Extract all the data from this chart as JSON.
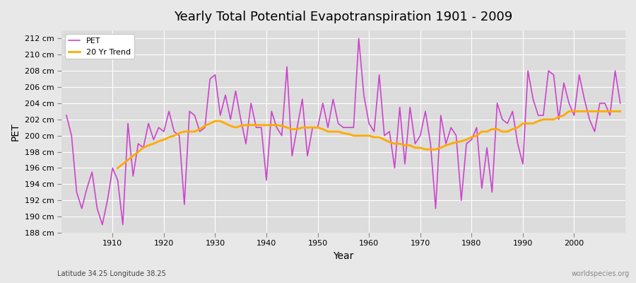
{
  "title": "Yearly Total Potential Evapotranspiration 1901 - 2009",
  "xlabel": "Year",
  "ylabel": "PET",
  "subtitle": "Latitude 34.25 Longitude 38.25",
  "watermark": "worldspecies.org",
  "pet_color": "#cc44cc",
  "trend_color": "#ffaa00",
  "bg_color": "#e8e8e8",
  "plot_bg_color": "#dcdcdc",
  "grid_color": "#ffffff",
  "ylim": [
    188,
    213
  ],
  "ytick_step": 2,
  "years": [
    1901,
    1902,
    1903,
    1904,
    1905,
    1906,
    1907,
    1908,
    1909,
    1910,
    1911,
    1912,
    1913,
    1914,
    1915,
    1916,
    1917,
    1918,
    1919,
    1920,
    1921,
    1922,
    1923,
    1924,
    1925,
    1926,
    1927,
    1928,
    1929,
    1930,
    1931,
    1932,
    1933,
    1934,
    1935,
    1936,
    1937,
    1938,
    1939,
    1940,
    1941,
    1942,
    1943,
    1944,
    1945,
    1946,
    1947,
    1948,
    1949,
    1950,
    1951,
    1952,
    1953,
    1954,
    1955,
    1956,
    1957,
    1958,
    1959,
    1960,
    1961,
    1962,
    1963,
    1964,
    1965,
    1966,
    1967,
    1968,
    1969,
    1970,
    1971,
    1972,
    1973,
    1974,
    1975,
    1976,
    1977,
    1978,
    1979,
    1980,
    1981,
    1982,
    1983,
    1984,
    1985,
    1986,
    1987,
    1988,
    1989,
    1990,
    1991,
    1992,
    1993,
    1994,
    1995,
    1996,
    1997,
    1998,
    1999,
    2000,
    2001,
    2002,
    2003,
    2004,
    2005,
    2006,
    2007,
    2008,
    2009
  ],
  "pet_values": [
    202.5,
    200.0,
    193.0,
    191.0,
    193.5,
    195.5,
    191.0,
    189.0,
    192.0,
    196.0,
    194.5,
    189.0,
    201.5,
    195.0,
    199.0,
    198.5,
    201.5,
    199.5,
    201.0,
    200.5,
    203.0,
    200.5,
    200.0,
    191.5,
    203.0,
    202.5,
    200.5,
    201.0,
    207.0,
    207.5,
    202.5,
    205.0,
    202.0,
    205.5,
    202.0,
    199.0,
    204.0,
    201.0,
    201.0,
    194.5,
    203.0,
    201.0,
    200.0,
    208.5,
    197.5,
    201.0,
    204.5,
    197.5,
    201.0,
    201.0,
    204.0,
    201.0,
    204.5,
    201.5,
    201.0,
    201.0,
    201.0,
    212.0,
    205.0,
    201.5,
    200.5,
    207.5,
    200.0,
    200.5,
    196.0,
    203.5,
    196.5,
    203.5,
    199.0,
    200.0,
    203.0,
    199.0,
    191.0,
    202.5,
    199.0,
    201.0,
    200.0,
    192.0,
    199.0,
    199.5,
    201.0,
    193.5,
    198.5,
    193.0,
    204.0,
    202.0,
    201.5,
    203.0,
    199.0,
    196.5,
    208.0,
    204.5,
    202.5,
    202.5,
    208.0,
    207.5,
    202.0,
    206.5,
    204.0,
    202.5,
    207.5,
    204.5,
    202.0,
    200.5,
    204.0,
    204.0,
    202.5,
    208.0,
    204.0
  ],
  "trend_values": [
    null,
    null,
    null,
    null,
    null,
    null,
    null,
    null,
    null,
    null,
    196.0,
    196.5,
    197.0,
    197.5,
    198.0,
    198.5,
    198.8,
    199.0,
    199.3,
    199.5,
    199.8,
    200.0,
    200.3,
    200.5,
    200.5,
    200.5,
    200.8,
    201.2,
    201.5,
    201.8,
    201.8,
    201.5,
    201.2,
    201.0,
    201.2,
    201.3,
    201.3,
    201.3,
    201.3,
    201.3,
    201.3,
    201.3,
    201.2,
    201.0,
    200.8,
    200.8,
    201.0,
    201.0,
    201.0,
    201.0,
    200.8,
    200.5,
    200.5,
    200.5,
    200.3,
    200.2,
    200.0,
    200.0,
    200.0,
    200.0,
    199.8,
    199.8,
    199.5,
    199.2,
    199.0,
    199.0,
    198.8,
    198.8,
    198.5,
    198.5,
    198.3,
    198.3,
    198.3,
    198.5,
    198.8,
    199.0,
    199.2,
    199.3,
    199.5,
    199.8,
    200.0,
    200.5,
    200.5,
    200.8,
    200.8,
    200.5,
    200.5,
    200.8,
    201.0,
    201.5,
    201.5,
    201.5,
    201.8,
    202.0,
    202.0,
    202.0,
    202.3,
    202.5,
    203.0,
    203.0,
    203.0,
    203.0,
    203.0,
    203.0,
    203.0,
    203.0,
    203.0,
    203.0,
    203.0
  ]
}
